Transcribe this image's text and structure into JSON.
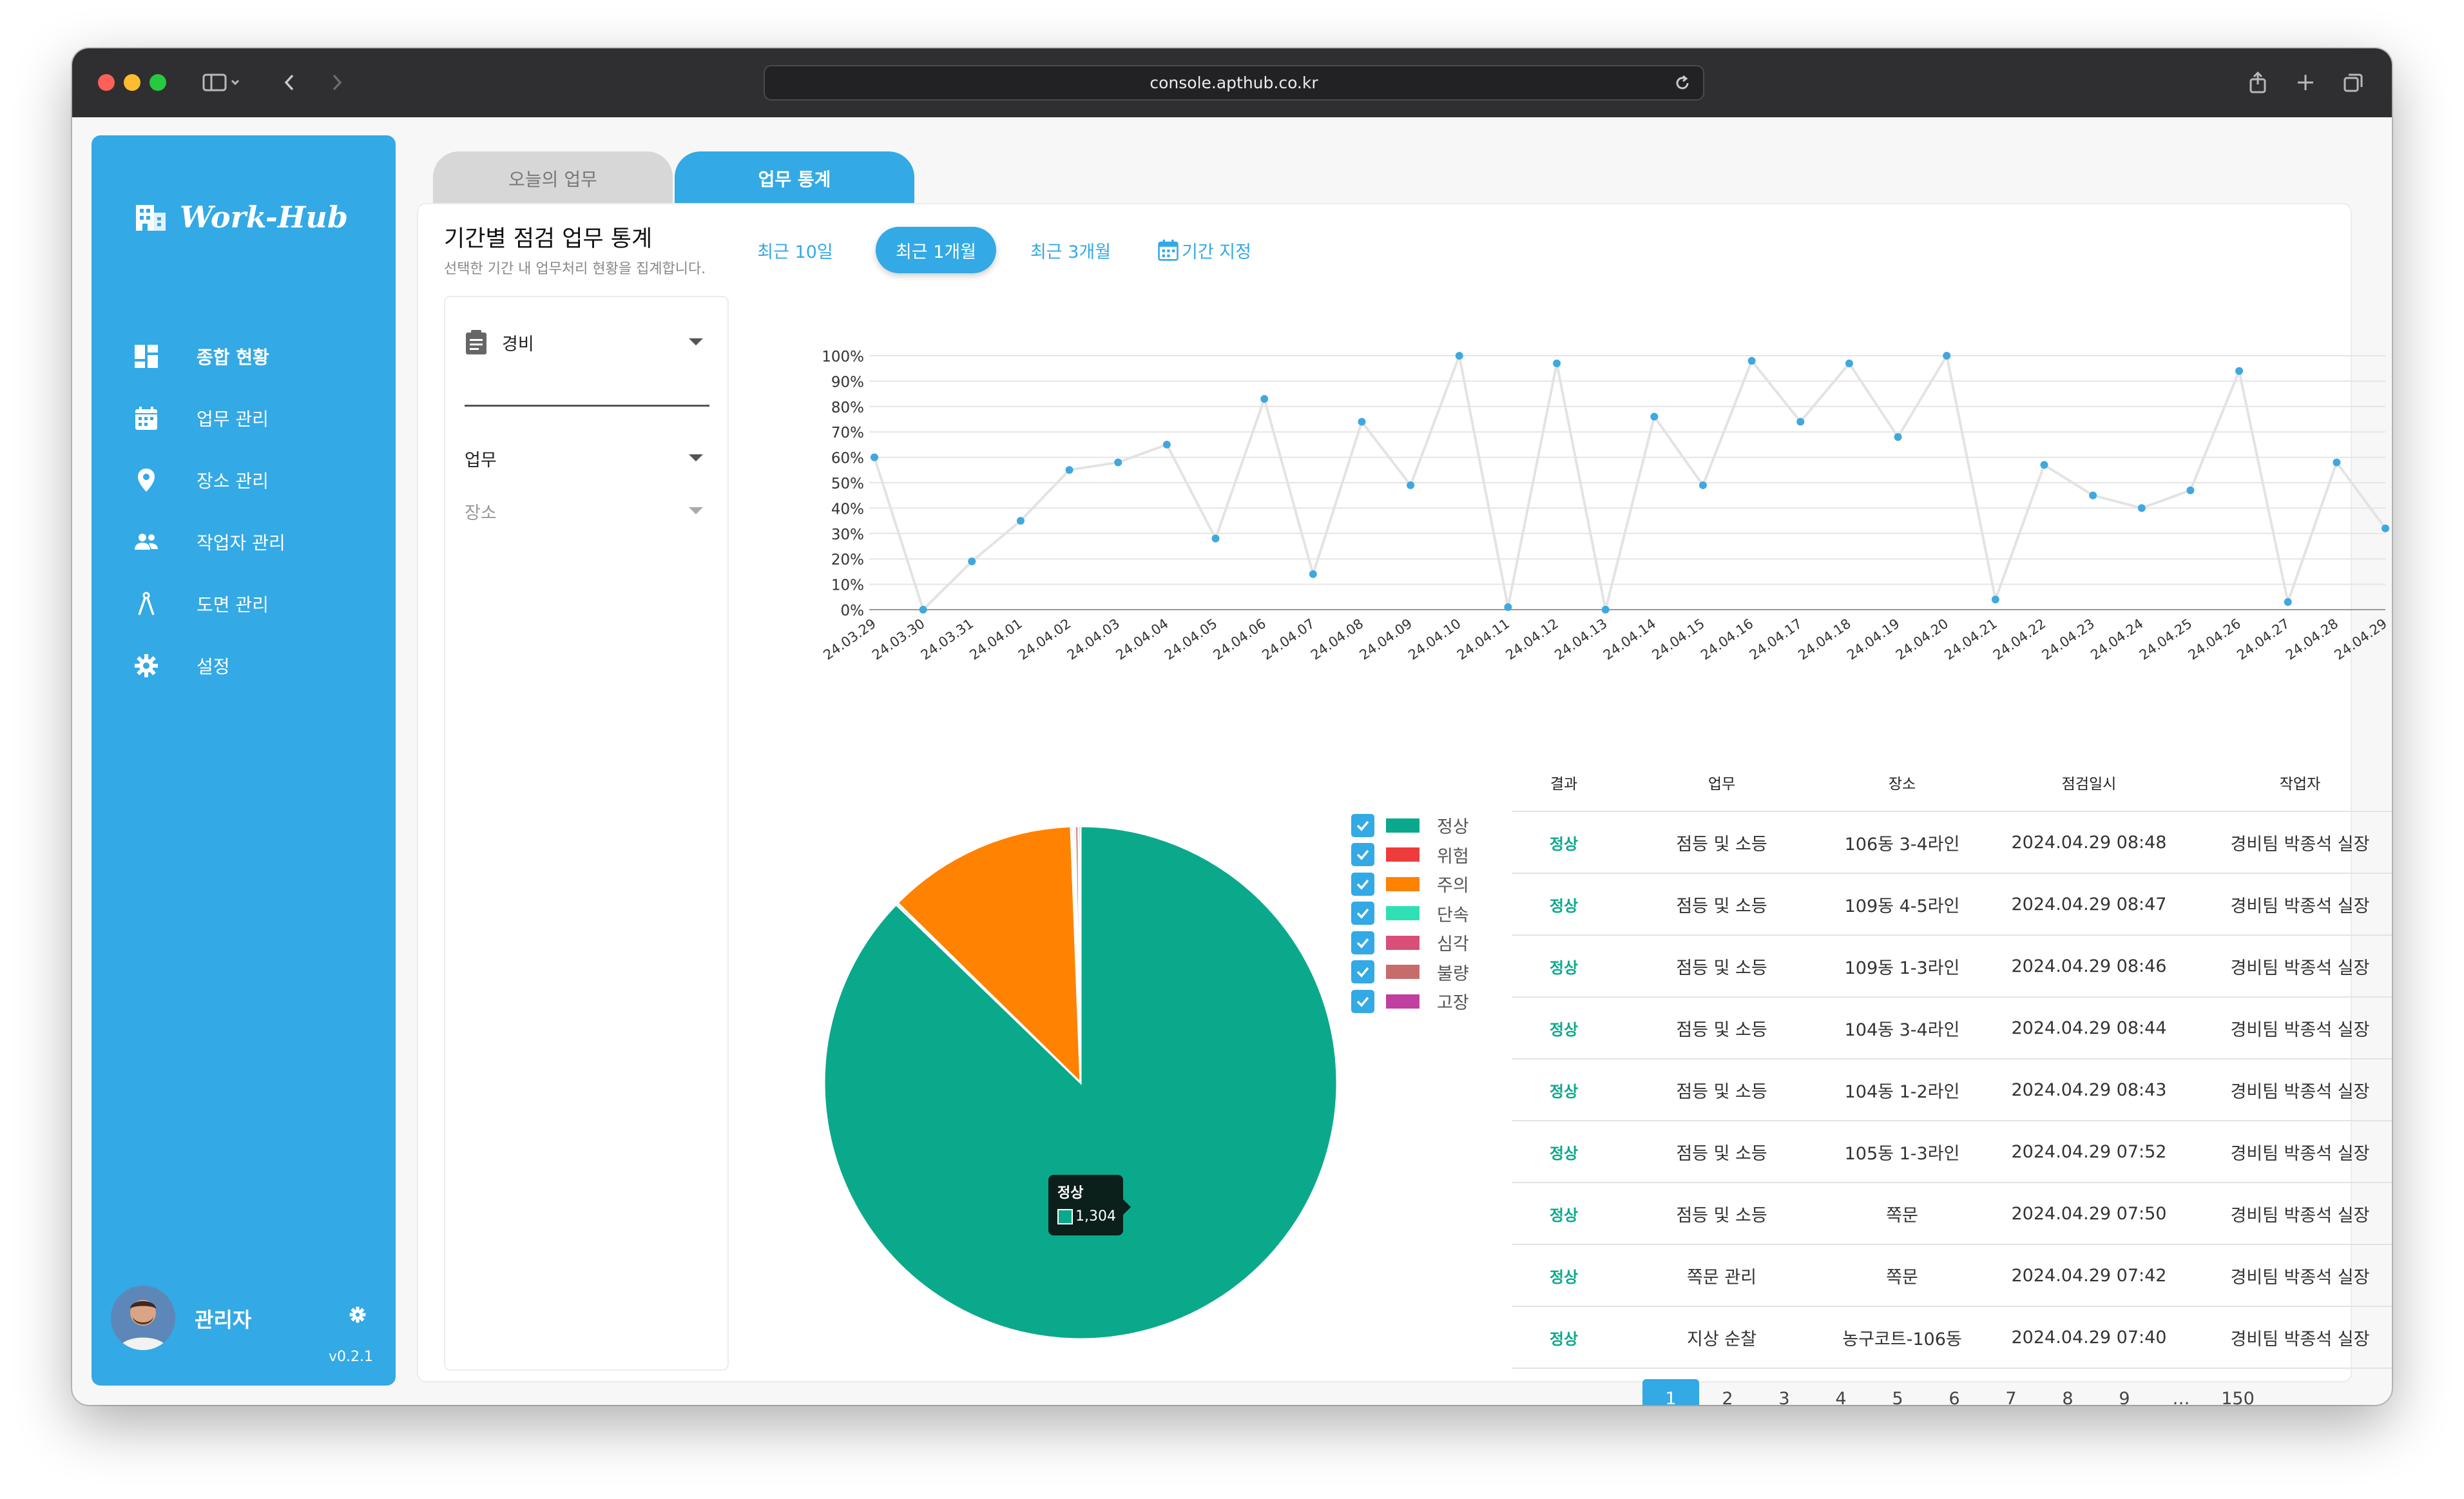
{
  "browser": {
    "url": "console.apthub.co.kr"
  },
  "sidebar": {
    "logo": "Work-Hub",
    "items": [
      {
        "label": "종합 현황",
        "icon": "dashboard-icon"
      },
      {
        "label": "업무 관리",
        "icon": "calendar-icon"
      },
      {
        "label": "장소 관리",
        "icon": "location-pin-icon"
      },
      {
        "label": "작업자 관리",
        "icon": "people-icon"
      },
      {
        "label": "도면 관리",
        "icon": "compass-icon"
      },
      {
        "label": "설정",
        "icon": "gear-icon"
      }
    ],
    "profile": {
      "name": "관리자",
      "version": "v0.2.1"
    }
  },
  "tabs": [
    "오늘의 업무",
    "업무 통계"
  ],
  "panel": {
    "title": "기간별 점검 업무 통계",
    "subtitle": "선택한 기간 내 업무처리 현황을 집계합니다.",
    "periods": [
      "최근 10일",
      "최근 1개월",
      "최근 3개월",
      "기간 지정"
    ]
  },
  "filters": {
    "category": "경비",
    "task": "업무",
    "place": "장소"
  },
  "colors": {
    "accent": "#33a9e5",
    "normal": "#0aa98b"
  },
  "chart_data": [
    {
      "type": "line",
      "x": [
        "24.03.29",
        "24.03.30",
        "24.03.31",
        "24.04.01",
        "24.04.02",
        "24.04.03",
        "24.04.04",
        "24.04.05",
        "24.04.06",
        "24.04.07",
        "24.04.08",
        "24.04.09",
        "24.04.10",
        "24.04.11",
        "24.04.12",
        "24.04.13",
        "24.04.14",
        "24.04.15",
        "24.04.16",
        "24.04.17",
        "24.04.18",
        "24.04.19",
        "24.04.20",
        "24.04.21",
        "24.04.22",
        "24.04.23",
        "24.04.24",
        "24.04.25",
        "24.04.26",
        "24.04.27",
        "24.04.28",
        "24.04.29"
      ],
      "values": [
        60,
        0,
        19,
        35,
        55,
        58,
        65,
        28,
        83,
        14,
        74,
        49,
        100,
        1,
        97,
        0,
        76,
        49,
        98,
        74,
        97,
        68,
        100,
        4,
        57,
        45,
        40,
        47,
        94,
        3,
        58,
        32
      ],
      "yticks": [
        "0%",
        "10%",
        "20%",
        "30%",
        "40%",
        "50%",
        "60%",
        "70%",
        "80%",
        "90%",
        "100%"
      ],
      "ylim": [
        0,
        100
      ],
      "color": "#3fa8df",
      "grid": true
    },
    {
      "type": "pie",
      "slices": [
        {
          "name": "정상",
          "value": 1304,
          "color": "#0aa98b"
        },
        {
          "name": "위험",
          "value": 2,
          "color": "#ee3b3b"
        },
        {
          "name": "주의",
          "value": 180,
          "color": "#ff8200"
        },
        {
          "name": "단속",
          "value": 2,
          "color": "#2fe0b5"
        },
        {
          "name": "심각",
          "value": 2,
          "color": "#d94f7a"
        },
        {
          "name": "불량",
          "value": 3,
          "color": "#c76b6b"
        },
        {
          "name": "고장",
          "value": 2,
          "color": "#c03fa0"
        }
      ],
      "tooltip": {
        "name": "정상",
        "value": "1,304"
      },
      "legend_position": "right"
    }
  ],
  "table": {
    "headers": [
      "결과",
      "업무",
      "장소",
      "점검일시",
      "작업자"
    ],
    "rows": [
      [
        "정상",
        "점등 및 소등",
        "106동 3-4라인",
        "2024.04.29 08:48",
        "경비팀 박종석 실장"
      ],
      [
        "정상",
        "점등 및 소등",
        "109동 4-5라인",
        "2024.04.29 08:47",
        "경비팀 박종석 실장"
      ],
      [
        "정상",
        "점등 및 소등",
        "109동 1-3라인",
        "2024.04.29 08:46",
        "경비팀 박종석 실장"
      ],
      [
        "정상",
        "점등 및 소등",
        "104동 3-4라인",
        "2024.04.29 08:44",
        "경비팀 박종석 실장"
      ],
      [
        "정상",
        "점등 및 소등",
        "104동 1-2라인",
        "2024.04.29 08:43",
        "경비팀 박종석 실장"
      ],
      [
        "정상",
        "점등 및 소등",
        "105동 1-3라인",
        "2024.04.29 07:52",
        "경비팀 박종석 실장"
      ],
      [
        "정상",
        "점등 및 소등",
        "쪽문",
        "2024.04.29 07:50",
        "경비팀 박종석 실장"
      ],
      [
        "정상",
        "쪽문 관리",
        "쪽문",
        "2024.04.29 07:42",
        "경비팀 박종석 실장"
      ],
      [
        "정상",
        "지상 순찰",
        "농구코트-106동",
        "2024.04.29 07:40",
        "경비팀 박종석 실장"
      ]
    ]
  },
  "pagination": [
    "1",
    "2",
    "3",
    "4",
    "5",
    "6",
    "7",
    "8",
    "9",
    "…",
    "150"
  ]
}
